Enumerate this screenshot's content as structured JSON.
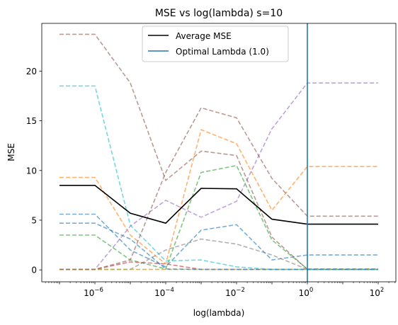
{
  "chart_data": {
    "type": "line",
    "title": "MSE vs log(lambda) s=10",
    "xlabel": "log(lambda)",
    "ylabel": "MSE",
    "xscale": "log",
    "x": [
      1e-07,
      1e-06,
      1e-05,
      0.0001,
      0.001,
      0.01,
      0.1,
      1,
      10,
      100
    ],
    "xlim": [
      3.16e-08,
      316.2
    ],
    "ylim": [
      -1.2,
      24.8
    ],
    "xticks": [
      {
        "value": 1e-06,
        "base": "10",
        "exp": "−6"
      },
      {
        "value": 0.0001,
        "base": "10",
        "exp": "−4"
      },
      {
        "value": 0.01,
        "base": "10",
        "exp": "−2"
      },
      {
        "value": 1,
        "base": "10",
        "exp": "0"
      },
      {
        "value": 100,
        "base": "10",
        "exp": "2"
      }
    ],
    "yticks": [
      0,
      5,
      10,
      15,
      20
    ],
    "legend_position": "top-center",
    "average": {
      "name": "Average MSE",
      "color": "#000000",
      "values": [
        8.5,
        8.5,
        5.7,
        4.7,
        8.2,
        8.15,
        5.1,
        4.6,
        4.6,
        4.6
      ]
    },
    "optimal": {
      "name": "Optimal Lambda (1.0)",
      "x": 1.0,
      "color": "#1f77b4"
    },
    "folds": [
      {
        "color": "#1f77b4",
        "values": [
          5.6,
          5.6,
          2.0,
          0.3,
          4.0,
          4.55,
          1.0,
          1.5,
          1.5,
          1.5
        ]
      },
      {
        "color": "#ff7f0e",
        "values": [
          9.3,
          9.3,
          3.5,
          0.6,
          14.1,
          12.7,
          6.0,
          10.4,
          10.4,
          10.4
        ]
      },
      {
        "color": "#2ca02c",
        "values": [
          3.5,
          3.5,
          1.0,
          0.1,
          9.8,
          10.5,
          3.0,
          0.1,
          0.1,
          0.1
        ]
      },
      {
        "color": "#d62728",
        "values": [
          0.05,
          0.05,
          0.8,
          0.6,
          0.05,
          0.05,
          0.05,
          0.05,
          0.05,
          0.05
        ]
      },
      {
        "color": "#9467bd",
        "values": [
          0.05,
          0.05,
          4.4,
          7.0,
          5.3,
          6.9,
          14.2,
          18.8,
          18.8,
          18.8
        ]
      },
      {
        "color": "#8c564b",
        "values": [
          23.7,
          23.7,
          18.8,
          9.0,
          11.95,
          11.5,
          3.3,
          0.05,
          0.05,
          0.05
        ]
      },
      {
        "color": "#e377c2",
        "values": [
          0.05,
          0.05,
          0.05,
          0.05,
          0.05,
          0.05,
          0.05,
          0.05,
          0.05,
          0.05
        ]
      },
      {
        "color": "#7f7f7f",
        "values": [
          0.05,
          0.05,
          0.05,
          2.0,
          3.1,
          2.6,
          1.5,
          0.05,
          0.05,
          0.05
        ]
      },
      {
        "color": "#bcbd22",
        "values": [
          0.05,
          0.05,
          0.05,
          0.05,
          0.05,
          0.05,
          0.05,
          0.05,
          0.05,
          0.05
        ]
      },
      {
        "color": "#17becf",
        "values": [
          18.5,
          18.5,
          4.5,
          0.9,
          1.0,
          0.3,
          0.05,
          0.05,
          0.05,
          0.05
        ]
      },
      {
        "color": "#8c564b",
        "values": [
          0.05,
          0.05,
          1.0,
          9.8,
          16.3,
          15.3,
          9.2,
          5.4,
          5.4,
          5.4
        ]
      },
      {
        "color": "#1f77b4",
        "values": [
          4.7,
          4.7,
          3.1,
          0.1,
          0.05,
          0.05,
          0.05,
          0.05,
          0.05,
          0.05
        ]
      }
    ]
  }
}
